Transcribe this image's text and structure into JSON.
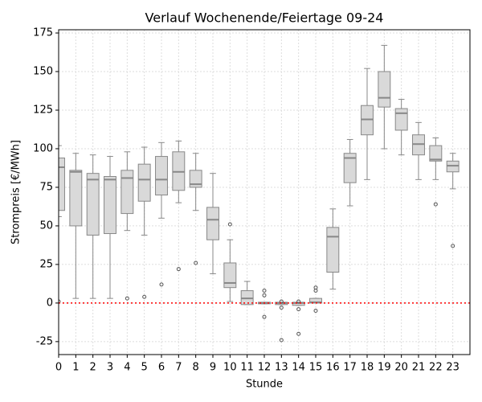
{
  "chart_data": {
    "type": "box",
    "title": "Verlauf Wochenende/Feiertage 09-24",
    "xlabel": "Stunde",
    "ylabel": "Strompreis [€/MWh]",
    "x": [
      0,
      1,
      2,
      3,
      4,
      5,
      6,
      7,
      8,
      9,
      10,
      11,
      12,
      13,
      14,
      15,
      16,
      17,
      18,
      19,
      20,
      21,
      22,
      23
    ],
    "xlim": [
      0,
      24
    ],
    "xticks": [
      0,
      1,
      2,
      3,
      4,
      5,
      6,
      7,
      8,
      9,
      10,
      11,
      12,
      13,
      14,
      15,
      16,
      17,
      18,
      19,
      20,
      21,
      22,
      23
    ],
    "ylim": [
      -33.4,
      177.1
    ],
    "yticks": [
      -25,
      0,
      25,
      50,
      75,
      100,
      125,
      150,
      175
    ],
    "grid": true,
    "box_color": "#d9d9d9",
    "edge_color": "#888888",
    "whislo": [
      56,
      3,
      3,
      3,
      47,
      44,
      55,
      65,
      60,
      19,
      1,
      -1,
      -0.5,
      -1,
      -1.5,
      0,
      9,
      63,
      80,
      100,
      96,
      80,
      80,
      74
    ],
    "q1": [
      60,
      50,
      44,
      45,
      58,
      66,
      70,
      73,
      75,
      41,
      10,
      -1,
      -0.5,
      -1,
      -1.5,
      0,
      20,
      78,
      109,
      127,
      112,
      96,
      92,
      85
    ],
    "median": [
      88,
      85,
      80,
      80,
      81,
      80,
      80,
      85,
      77,
      54,
      13,
      3,
      0,
      0,
      0,
      0.5,
      43,
      94,
      119,
      133,
      123,
      103,
      93,
      89
    ],
    "q3": [
      94,
      86,
      84,
      82,
      86,
      90,
      95,
      98,
      86,
      62,
      26,
      8,
      0.5,
      0.5,
      0.5,
      3,
      49,
      97,
      128,
      150,
      126,
      109,
      102,
      92
    ],
    "whishi": [
      102,
      97,
      96,
      95,
      98,
      101,
      104,
      105,
      97,
      84,
      41,
      14,
      0.5,
      0.5,
      0.5,
      3,
      61,
      106,
      152,
      167,
      132,
      117,
      107,
      97
    ],
    "fliers": [
      [
        1
      ],
      [],
      [],
      [],
      [
        3
      ],
      [
        4
      ],
      [
        12
      ],
      [
        22
      ],
      [
        26
      ],
      [],
      [
        51
      ],
      [],
      [
        8,
        5,
        -9
      ],
      [
        1,
        -3,
        -24
      ],
      [
        1,
        -4,
        -20
      ],
      [
        10,
        8,
        -5
      ],
      [],
      [],
      [],
      [],
      [],
      [],
      [
        64
      ],
      [
        37
      ]
    ],
    "hline": {
      "value": 0,
      "color": "#ff0000"
    }
  }
}
